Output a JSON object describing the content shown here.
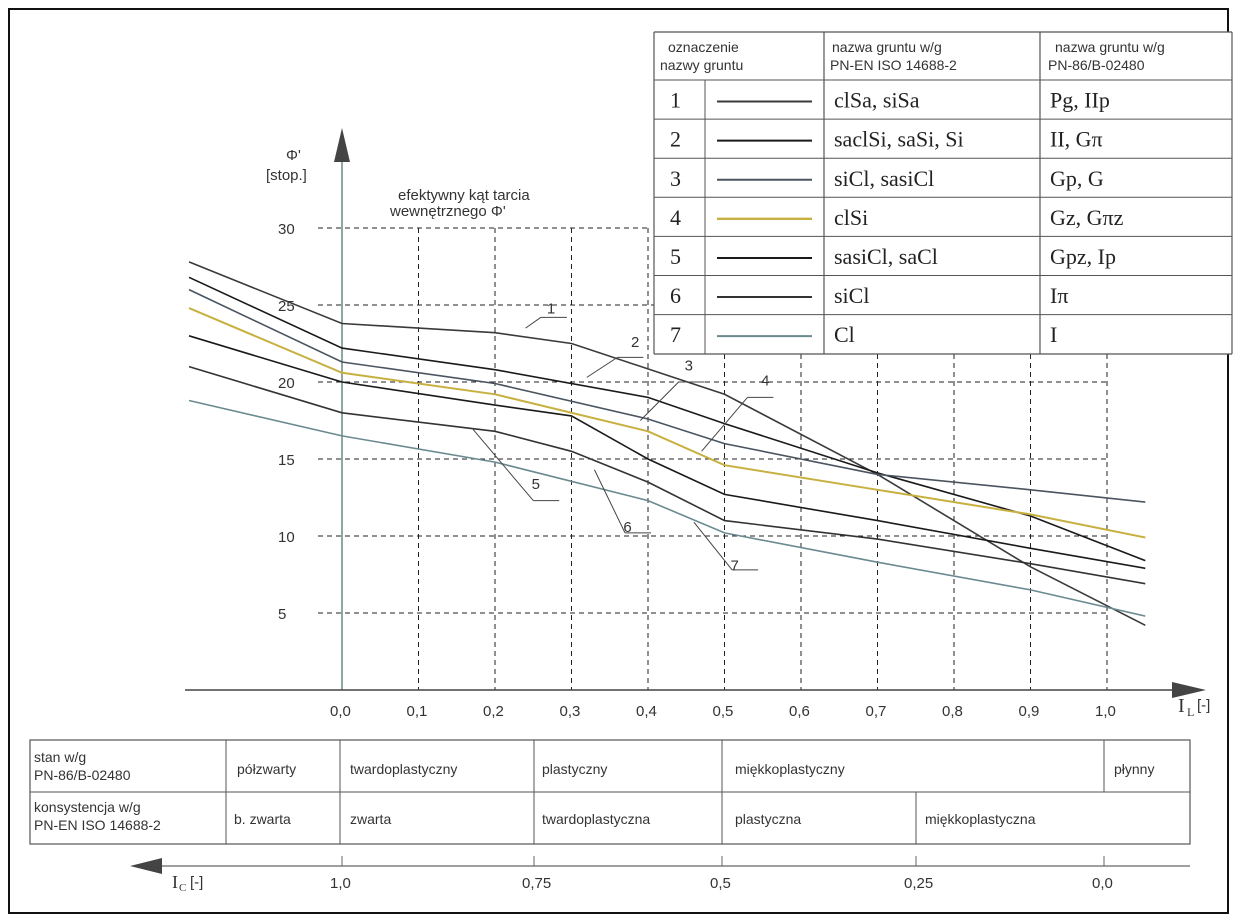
{
  "chart_data": {
    "type": "line",
    "ylabel": "Φ'",
    "ylabel_unit": "[stop.]",
    "xlabel": "I",
    "xlabel_sub": "L",
    "xlabel_unit": "[-]",
    "annotation": "efektywny kąt tarcia wewnętrznego Φ'",
    "xlim": [
      -0.2,
      1.05
    ],
    "ylim": [
      0,
      30
    ],
    "x_ticks": [
      "0,0",
      "0,1",
      "0,2",
      "0,3",
      "0,4",
      "0,5",
      "0,6",
      "0,7",
      "0,8",
      "0,9",
      "1,0"
    ],
    "x_tick_values": [
      0,
      0.1,
      0.2,
      0.3,
      0.4,
      0.5,
      0.6,
      0.7,
      0.8,
      0.9,
      1.0
    ],
    "y_ticks": [
      "5",
      "10",
      "15",
      "20",
      "25",
      "30"
    ],
    "y_tick_values": [
      5,
      10,
      15,
      20,
      25,
      30
    ],
    "series": [
      {
        "name": "1",
        "color": "#3a3a3a",
        "points": [
          [
            -0.2,
            27.8
          ],
          [
            0,
            23.8
          ],
          [
            0.2,
            23.2
          ],
          [
            0.3,
            22.5
          ],
          [
            0.5,
            19.2
          ],
          [
            0.7,
            14.0
          ],
          [
            0.9,
            8.0
          ],
          [
            1.05,
            4.2
          ]
        ]
      },
      {
        "name": "2",
        "color": "#1a1a1a",
        "points": [
          [
            -0.2,
            26.8
          ],
          [
            0,
            22.2
          ],
          [
            0.2,
            20.8
          ],
          [
            0.4,
            19.0
          ],
          [
            0.5,
            17.3
          ],
          [
            0.7,
            14.1
          ],
          [
            0.9,
            11.3
          ],
          [
            1.05,
            8.4
          ]
        ]
      },
      {
        "name": "3",
        "color": "#4a5560",
        "points": [
          [
            -0.2,
            26.0
          ],
          [
            0,
            21.3
          ],
          [
            0.2,
            19.9
          ],
          [
            0.4,
            17.6
          ],
          [
            0.5,
            16.0
          ],
          [
            0.7,
            14.0
          ],
          [
            0.9,
            13.0
          ],
          [
            1.05,
            12.2
          ]
        ]
      },
      {
        "name": "4",
        "color": "#c8b040",
        "points": [
          [
            -0.2,
            24.8
          ],
          [
            0,
            20.6
          ],
          [
            0.2,
            19.2
          ],
          [
            0.4,
            16.8
          ],
          [
            0.5,
            14.6
          ],
          [
            0.7,
            13.0
          ],
          [
            0.9,
            11.4
          ],
          [
            1.05,
            9.9
          ]
        ]
      },
      {
        "name": "5",
        "color": "#1a1a1a",
        "points": [
          [
            -0.2,
            23.0
          ],
          [
            0,
            20.0
          ],
          [
            0.2,
            18.5
          ],
          [
            0.3,
            17.8
          ],
          [
            0.4,
            15.0
          ],
          [
            0.5,
            12.7
          ],
          [
            0.7,
            11.0
          ],
          [
            0.9,
            9.2
          ],
          [
            1.05,
            7.9
          ]
        ]
      },
      {
        "name": "6",
        "color": "#333333",
        "points": [
          [
            -0.2,
            21.0
          ],
          [
            0,
            18.0
          ],
          [
            0.2,
            16.8
          ],
          [
            0.3,
            15.5
          ],
          [
            0.4,
            13.5
          ],
          [
            0.5,
            11.0
          ],
          [
            0.7,
            9.8
          ],
          [
            0.9,
            8.2
          ],
          [
            1.05,
            6.9
          ]
        ]
      },
      {
        "name": "7",
        "color": "#6a8a90",
        "points": [
          [
            -0.2,
            18.8
          ],
          [
            0,
            16.5
          ],
          [
            0.2,
            14.8
          ],
          [
            0.4,
            12.3
          ],
          [
            0.5,
            10.2
          ],
          [
            0.7,
            8.3
          ],
          [
            0.9,
            6.5
          ],
          [
            1.05,
            4.8
          ]
        ]
      }
    ]
  },
  "legend": {
    "header_col1": "oznaczenie nazwy gruntu",
    "header_col1_line1": "oznaczenie",
    "header_col1_line2": "nazwy gruntu",
    "header_col2_line1": "nazwa gruntu w/g",
    "header_col2_line2": "PN-EN ISO 14688-2",
    "header_col3_line1": "nazwa gruntu w/g",
    "header_col3_line2": "PN-86/B-02480",
    "rows": [
      {
        "num": "1",
        "iso": "clSa, siSa",
        "pn": "Pg, IIp"
      },
      {
        "num": "2",
        "iso": "saclSi, saSi, Si",
        "pn": "II, Gπ"
      },
      {
        "num": "3",
        "iso": "siCl, sasiCl",
        "pn": "Gp, G"
      },
      {
        "num": "4",
        "iso": "clSi",
        "pn": "Gz, Gπz"
      },
      {
        "num": "5",
        "iso": "sasiCl, saCl",
        "pn": "Gpz, Ip"
      },
      {
        "num": "6",
        "iso": "siCl",
        "pn": "Iπ"
      },
      {
        "num": "7",
        "iso": "Cl",
        "pn": "I"
      }
    ]
  },
  "bottom_table": {
    "row1_label_line1": "stan w/g",
    "row1_label_line2": "PN-86/B-02480",
    "row1_cells": [
      "półzwarty",
      "twardoplastyczny",
      "plastyczny",
      "miękkoplastyczny",
      "płynny"
    ],
    "row2_label_line1": "konsystencja w/g",
    "row2_label_line2": "PN-EN ISO 14688-2",
    "row2_cells": [
      "b. zwarta",
      "zwarta",
      "twardoplastyczna",
      "plastyczna",
      "miękkoplastyczna"
    ]
  },
  "ic_axis": {
    "label": "I",
    "label_sub": "C",
    "unit": "[-]",
    "ticks": [
      "1,0",
      "0,75",
      "0,5",
      "0,25",
      "0,0"
    ]
  }
}
